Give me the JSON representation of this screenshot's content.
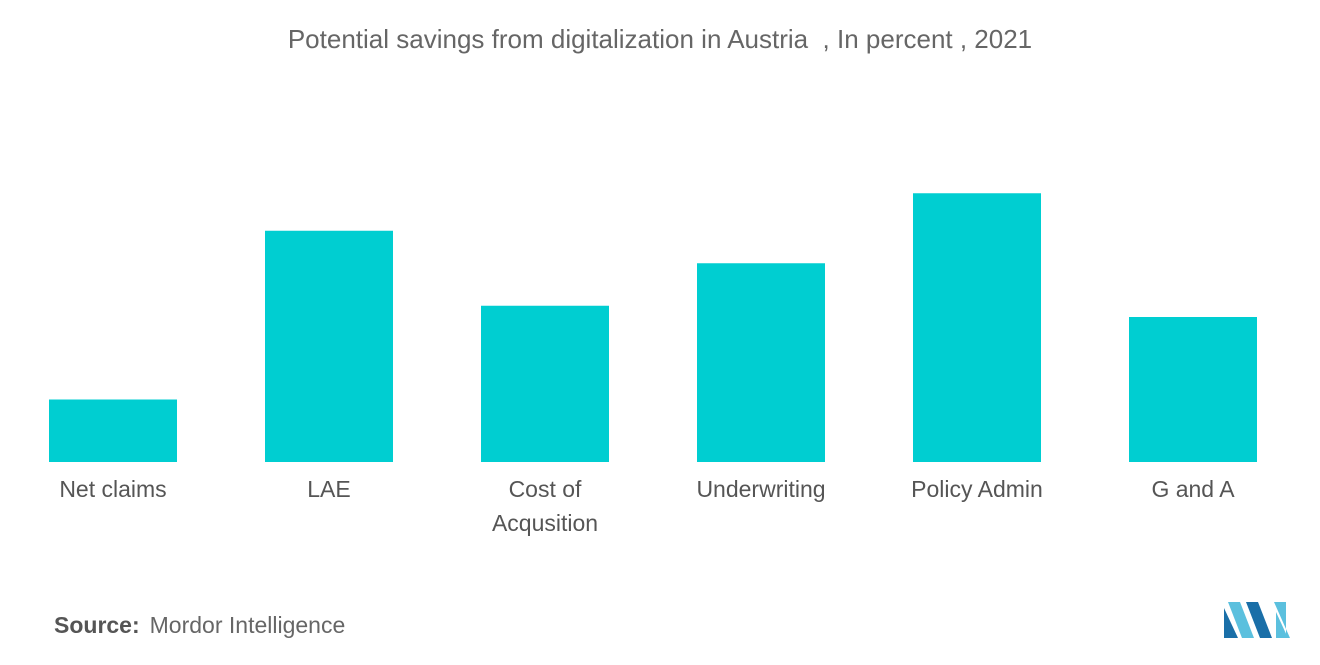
{
  "chart_data": {
    "type": "bar",
    "title": "Potential savings from digitalization in Austria  , In percent , 2021",
    "categories": [
      "Net claims",
      "LAE",
      "Cost of Acqusition",
      "Underwriting",
      "Policy Admin",
      "G and A"
    ],
    "category_lines": [
      [
        "Net claims"
      ],
      [
        "LAE"
      ],
      [
        "Cost of",
        "Acqusition"
      ],
      [
        "Underwriting"
      ],
      [
        "Policy Admin"
      ],
      [
        "G and A"
      ]
    ],
    "values": [
      5,
      18.5,
      12.5,
      15.9,
      21.5,
      11.6
    ],
    "ylim": [
      0,
      28
    ],
    "grid": false,
    "legend": "none",
    "bar_color": "#00CED1"
  },
  "source": {
    "label": "Source:",
    "text": "Mordor Intelligence"
  },
  "logo": {
    "icon": "mordor-intelligence-logo-icon",
    "colors": [
      "#5BC0DE",
      "#1A6FA8"
    ]
  }
}
